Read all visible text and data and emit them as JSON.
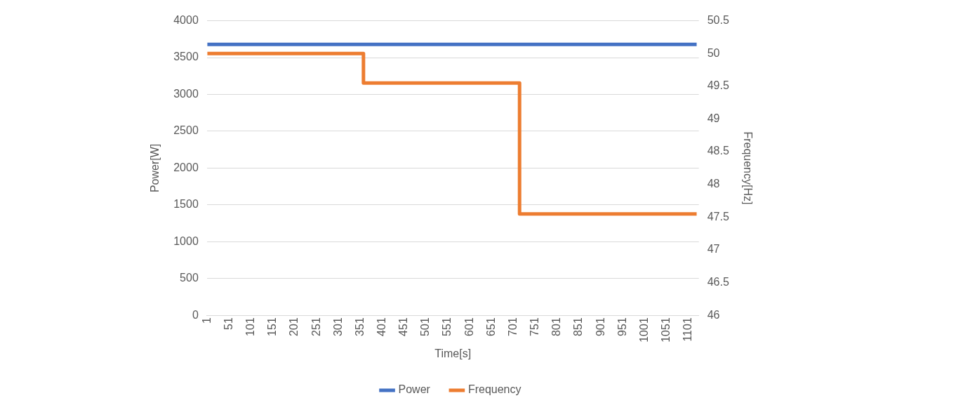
{
  "chart_data": {
    "type": "line",
    "xlabel": "Time[s]",
    "ylabel": "Power[W]",
    "y2label": "Frequency[Hz]",
    "xlim": [
      0,
      1125
    ],
    "xticks": [
      1,
      51,
      101,
      151,
      201,
      251,
      301,
      351,
      401,
      451,
      501,
      551,
      601,
      651,
      701,
      751,
      801,
      851,
      901,
      951,
      1001,
      1051,
      1101
    ],
    "ylim": [
      0,
      4000
    ],
    "yticks": [
      0,
      500,
      1000,
      1500,
      2000,
      2500,
      3000,
      3500,
      4000
    ],
    "y2lim": [
      46,
      50.5
    ],
    "y2ticks": [
      46,
      46.5,
      47,
      47.5,
      48,
      48.5,
      49,
      49.5,
      50,
      50.5
    ],
    "grid": "y",
    "legend": "bottom",
    "series": [
      {
        "name": "Power",
        "color": "#4472c4",
        "x": [
          1,
          1120
        ],
        "values": [
          3680,
          3680
        ]
      },
      {
        "name": "Frequency",
        "color": "#ed7d31",
        "axis": "y2",
        "x": [
          1,
          358,
          358,
          715,
          715,
          1120
        ],
        "values": [
          50,
          50,
          49.55,
          49.55,
          47.55,
          47.55
        ]
      }
    ]
  }
}
